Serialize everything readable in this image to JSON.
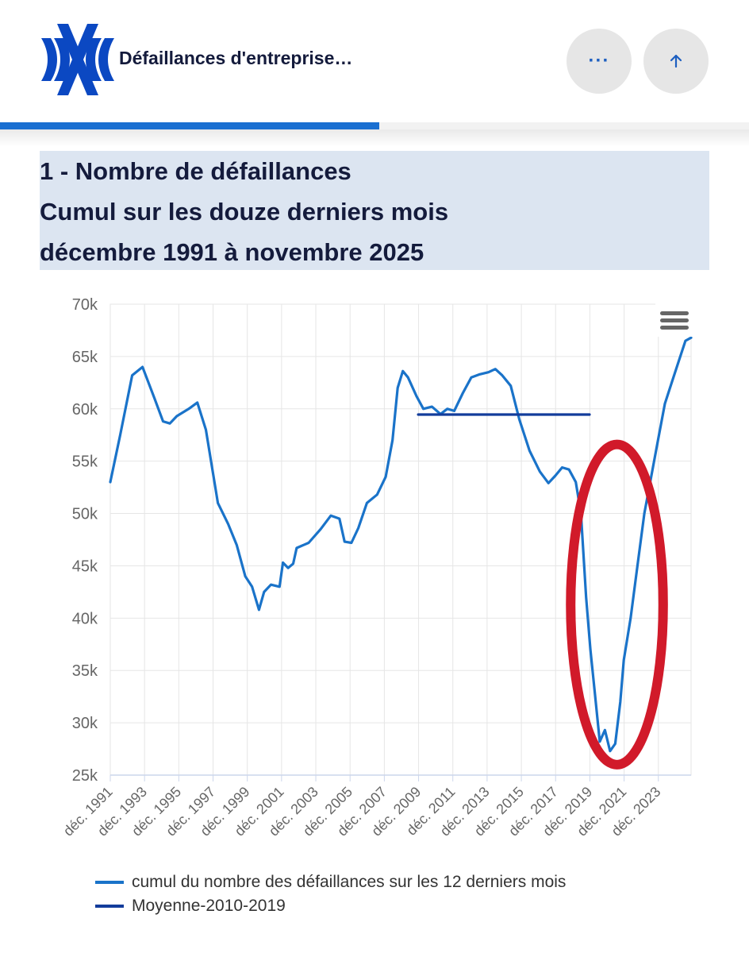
{
  "header": {
    "app_title": "Défaillances d'entreprise…",
    "more_label": "···",
    "reading_progress": 0.506
  },
  "title": {
    "line1": "1 - Nombre de défaillances",
    "line2": "Cumul sur les douze derniers mois",
    "line3": "décembre 1991 à novembre 2025"
  },
  "colors": {
    "series_main": "#1a73c9",
    "series_mean": "#133c9b",
    "annotation": "#d11a2a",
    "title_bg": "#dce5f1"
  },
  "chart_data": {
    "type": "line",
    "title": "",
    "xlabel": "",
    "ylabel": "",
    "xlim": [
      1991.92,
      2025.83
    ],
    "ylim": [
      25000,
      70000
    ],
    "y_ticks": [
      25000,
      30000,
      35000,
      40000,
      45000,
      50000,
      55000,
      60000,
      65000,
      70000
    ],
    "y_tick_labels": [
      "25k",
      "30k",
      "35k",
      "40k",
      "45k",
      "50k",
      "55k",
      "60k",
      "65k",
      "70k"
    ],
    "x_tick_labels": [
      "déc. 1991",
      "déc. 1993",
      "déc. 1995",
      "déc. 1997",
      "déc. 1999",
      "déc. 2001",
      "déc. 2003",
      "déc. 2005",
      "déc. 2007",
      "déc. 2009",
      "déc. 2011",
      "déc. 2013",
      "déc. 2015",
      "déc. 2017",
      "déc. 2019",
      "déc. 2021",
      "déc. 2023"
    ],
    "grid": true,
    "legend_position": "bottom-left",
    "series": [
      {
        "name": "cumul du nombre des défaillances sur les 12 derniers mois",
        "color": "#1a73c9",
        "x": [
          1991.92,
          1992.5,
          1993.2,
          1993.8,
          1994.5,
          1995.0,
          1995.4,
          1995.8,
          1996.5,
          1997.0,
          1997.5,
          1998.2,
          1998.8,
          1999.3,
          1999.8,
          2000.2,
          2000.6,
          2000.9,
          2001.3,
          2001.8,
          2002.0,
          2002.3,
          2002.6,
          2002.8,
          2003.5,
          2004.2,
          2004.8,
          2005.3,
          2005.6,
          2006.0,
          2006.4,
          2006.9,
          2007.5,
          2008.0,
          2008.4,
          2008.7,
          2009.0,
          2009.3,
          2009.8,
          2010.2,
          2010.7,
          2011.2,
          2011.6,
          2012.0,
          2012.5,
          2013.0,
          2013.5,
          2014.0,
          2014.4,
          2014.8,
          2015.3,
          2015.8,
          2016.4,
          2017.0,
          2017.5,
          2017.9,
          2018.3,
          2018.7,
          2019.1,
          2019.4,
          2019.7,
          2019.95,
          2020.2,
          2020.5,
          2020.8,
          2021.1,
          2021.4,
          2021.7,
          2021.9,
          2022.3,
          2022.7,
          2023.1,
          2023.5,
          2023.9,
          2024.3,
          2024.7,
          2025.1,
          2025.5,
          2025.83
        ],
        "values": [
          53000,
          57500,
          63200,
          64000,
          61000,
          58800,
          58600,
          59300,
          60000,
          60600,
          58000,
          51000,
          49000,
          47000,
          44000,
          43000,
          40800,
          42500,
          43200,
          43000,
          45300,
          44800,
          45200,
          46700,
          47200,
          48500,
          49800,
          49500,
          47300,
          47200,
          48600,
          51000,
          51800,
          53500,
          57000,
          62000,
          63600,
          63000,
          61200,
          60000,
          60200,
          59500,
          60000,
          59800,
          61500,
          63000,
          63300,
          63500,
          63800,
          63200,
          62200,
          59000,
          56000,
          54000,
          52900,
          53600,
          54400,
          54200,
          53000,
          50000,
          42000,
          37000,
          33000,
          28200,
          29300,
          27300,
          28000,
          32000,
          36000,
          40000,
          45000,
          50000,
          53500,
          57000,
          60500,
          62500,
          64500,
          66500,
          66800
        ]
      },
      {
        "name": "Moyenne-2010-2019",
        "color": "#133c9b",
        "x": [
          2009.9,
          2019.9
        ],
        "values": [
          59450,
          59450
        ]
      }
    ],
    "annotations": [
      {
        "type": "ellipse",
        "label": "",
        "x_center": 2021.5,
        "y_center": 41300,
        "x_radius": 2.7,
        "y_radius": 15300
      }
    ]
  }
}
